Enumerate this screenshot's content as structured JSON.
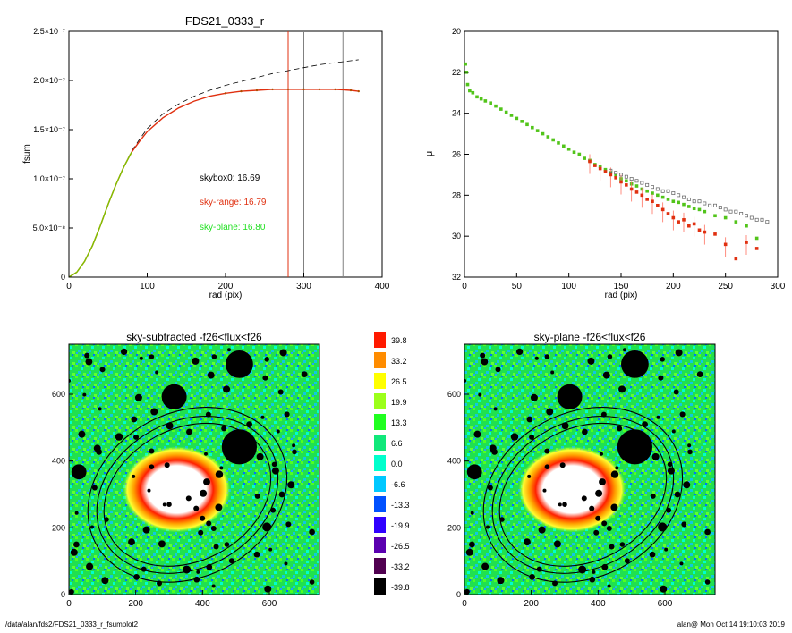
{
  "colors": {
    "axis": "#000000",
    "fsum_sky_range": "#e03010",
    "fsum_sky_plane": "#7fc300",
    "fsum_skybox": "#000000",
    "vline_red": "#e03010",
    "vline_grey": "#808080",
    "text_skybox": "#000000",
    "text_range": "#e03010",
    "text_plane": "#20e020",
    "mu_range": "#e03010",
    "mu_plane": "#52c41a",
    "mu_box": "#606060"
  },
  "chart_data": [
    {
      "type": "line",
      "title": "FDS21_0333_r",
      "xlabel": "rad (pix)",
      "ylabel": "fsum",
      "xlim": [
        0,
        400
      ],
      "ylim": [
        0,
        2.5e-07
      ],
      "x_ticks": [
        "0",
        "100",
        "200",
        "300",
        "400"
      ],
      "y_ticks": [
        "0",
        "5.0×10⁻⁸",
        "1.0×10⁻⁷",
        "1.5×10⁻⁷",
        "2.0×10⁻⁷",
        "2.5×10⁻⁷"
      ],
      "annotations": [
        {
          "text": "skybox0: 16.69",
          "color_key": "text_skybox"
        },
        {
          "text": "sky-range: 16.79",
          "color_key": "text_range"
        },
        {
          "text": "sky-plane: 16.80",
          "color_key": "text_plane"
        }
      ],
      "vlines": [
        {
          "x": 280,
          "color_key": "vline_red"
        },
        {
          "x": 300,
          "color_key": "vline_grey"
        },
        {
          "x": 350,
          "color_key": "vline_grey"
        }
      ],
      "series": [
        {
          "color_key": "fsum_skybox",
          "dashed": true,
          "x": [
            0,
            10,
            20,
            30,
            40,
            50,
            60,
            70,
            80,
            90,
            100,
            120,
            140,
            160,
            180,
            200,
            220,
            240,
            260,
            280,
            300,
            320,
            340,
            360,
            370
          ],
          "y": [
            0,
            5e-09,
            1.6e-08,
            3.2e-08,
            5.2e-08,
            7.4e-08,
            9.4e-08,
            1.12e-07,
            1.28e-07,
            1.4e-07,
            1.51e-07,
            1.66e-07,
            1.76e-07,
            1.84e-07,
            1.9e-07,
            1.95e-07,
            1.99e-07,
            2.03e-07,
            2.07e-07,
            2.1e-07,
            2.13e-07,
            2.16e-07,
            2.18e-07,
            2.2e-07,
            2.21e-07
          ]
        },
        {
          "color_key": "fsum_sky_range",
          "dashed": false,
          "x": [
            0,
            10,
            20,
            30,
            40,
            50,
            60,
            70,
            80,
            90,
            100,
            120,
            140,
            160,
            180,
            200,
            220,
            240,
            260,
            280,
            300,
            320,
            340,
            360,
            370
          ],
          "y": [
            0,
            5e-09,
            1.6e-08,
            3.2e-08,
            5.2e-08,
            7.4e-08,
            9.4e-08,
            1.12e-07,
            1.27e-07,
            1.38e-07,
            1.48e-07,
            1.62e-07,
            1.72e-07,
            1.79e-07,
            1.84e-07,
            1.87e-07,
            1.89e-07,
            1.9e-07,
            1.91e-07,
            1.91e-07,
            1.91e-07,
            1.91e-07,
            1.91e-07,
            1.9e-07,
            1.89e-07
          ]
        },
        {
          "color_key": "fsum_sky_plane",
          "dashed": false,
          "x": [
            0,
            10,
            20,
            30,
            40,
            50,
            60,
            70,
            80
          ],
          "y": [
            0,
            5e-09,
            1.6e-08,
            3.2e-08,
            5.2e-08,
            7.4e-08,
            9.4e-08,
            1.12e-07,
            1.27e-07
          ]
        }
      ]
    },
    {
      "type": "scatter",
      "title": "",
      "xlabel": "rad (pix)",
      "ylabel": "μ",
      "xlim": [
        0,
        300
      ],
      "ylim": [
        32,
        20
      ],
      "x_ticks": [
        "0",
        "50",
        "100",
        "150",
        "200",
        "250",
        "300"
      ],
      "y_ticks": [
        "20",
        "22",
        "24",
        "26",
        "28",
        "30",
        "32"
      ],
      "series": [
        {
          "color_key": "mu_plane",
          "marker": "square",
          "x": [
            1,
            2,
            3,
            5,
            8,
            12,
            16,
            20,
            25,
            30,
            35,
            40,
            45,
            50,
            55,
            60,
            65,
            70,
            75,
            80,
            85,
            90,
            95,
            100,
            105,
            110,
            115,
            120,
            125,
            130,
            135,
            140,
            145,
            150,
            155,
            160,
            165,
            170,
            175,
            180,
            185,
            190,
            195,
            200,
            205,
            210,
            215,
            220,
            225,
            230,
            240,
            250,
            260,
            270,
            280
          ],
          "y": [
            21.6,
            22.0,
            22.6,
            22.9,
            23.0,
            23.2,
            23.3,
            23.4,
            23.5,
            23.65,
            23.8,
            23.95,
            24.1,
            24.25,
            24.4,
            24.55,
            24.7,
            24.85,
            25.0,
            25.15,
            25.3,
            25.45,
            25.6,
            25.75,
            25.9,
            26.0,
            26.2,
            26.3,
            26.5,
            26.6,
            26.75,
            26.9,
            27.05,
            27.2,
            27.3,
            27.45,
            27.55,
            27.7,
            27.8,
            27.9,
            28.0,
            28.1,
            28.2,
            28.3,
            28.35,
            28.45,
            28.55,
            28.65,
            28.7,
            28.8,
            29.0,
            29.1,
            29.3,
            29.5,
            30.1
          ]
        },
        {
          "color_key": "mu_range",
          "marker": "square",
          "x": [
            120,
            125,
            130,
            135,
            140,
            145,
            150,
            155,
            160,
            165,
            170,
            175,
            180,
            185,
            190,
            195,
            200,
            205,
            210,
            215,
            220,
            225,
            230,
            240,
            250,
            260,
            270,
            280
          ],
          "y": [
            26.35,
            26.55,
            26.7,
            26.85,
            27.0,
            27.15,
            27.35,
            27.5,
            27.7,
            27.85,
            28.0,
            28.2,
            28.3,
            28.5,
            28.7,
            28.9,
            29.1,
            29.3,
            29.2,
            29.5,
            29.4,
            29.7,
            29.8,
            29.9,
            30.4,
            31.1,
            30.3,
            30.6
          ]
        },
        {
          "color_key": "mu_box",
          "marker": "open-square",
          "x": [
            140,
            145,
            150,
            155,
            160,
            165,
            170,
            175,
            180,
            185,
            190,
            195,
            200,
            205,
            210,
            215,
            220,
            225,
            230,
            235,
            240,
            245,
            250,
            255,
            260,
            265,
            270,
            275,
            280,
            285,
            290
          ],
          "y": [
            26.8,
            26.9,
            27.0,
            27.1,
            27.2,
            27.3,
            27.4,
            27.5,
            27.6,
            27.7,
            27.8,
            27.8,
            27.9,
            28.0,
            28.1,
            28.2,
            28.3,
            28.3,
            28.4,
            28.5,
            28.5,
            28.6,
            28.7,
            28.8,
            28.8,
            28.9,
            29.0,
            29.1,
            29.2,
            29.2,
            29.3
          ]
        }
      ]
    },
    {
      "type": "heatmap",
      "title": "sky-subtracted -f26<flux<f26",
      "xlim": [
        0,
        750
      ],
      "ylim": [
        0,
        750
      ],
      "x_ticks": [
        "0",
        "200",
        "400",
        "600"
      ],
      "y_ticks": [
        "0",
        "200",
        "400",
        "600"
      ]
    },
    {
      "type": "heatmap",
      "title": "sky-plane -f26<flux<f26",
      "xlim": [
        0,
        750
      ],
      "ylim": [
        0,
        750
      ],
      "x_ticks": [
        "0",
        "200",
        "400",
        "600"
      ],
      "y_ticks": [
        "0",
        "200",
        "400",
        "600"
      ]
    }
  ],
  "colorbar": {
    "labels": [
      "39.8",
      "33.2",
      "26.5",
      "19.9",
      "13.3",
      "6.6",
      "0.0",
      "-6.6",
      "-13.3",
      "-19.9",
      "-26.5",
      "-33.2",
      "-39.8"
    ],
    "colors": [
      "#ff1a00",
      "#ff8c00",
      "#ffff00",
      "#9cff1a",
      "#20ff20",
      "#10e87a",
      "#00ffcc",
      "#00c8ff",
      "#0050ff",
      "#3000ff",
      "#5a00b0",
      "#500050",
      "#000000"
    ]
  },
  "footer": {
    "left": "/data/alan/fds2/FDS21_0333_r_fsumplot2",
    "right": "alan@  Mon Oct 14 19:10:03 2019"
  }
}
